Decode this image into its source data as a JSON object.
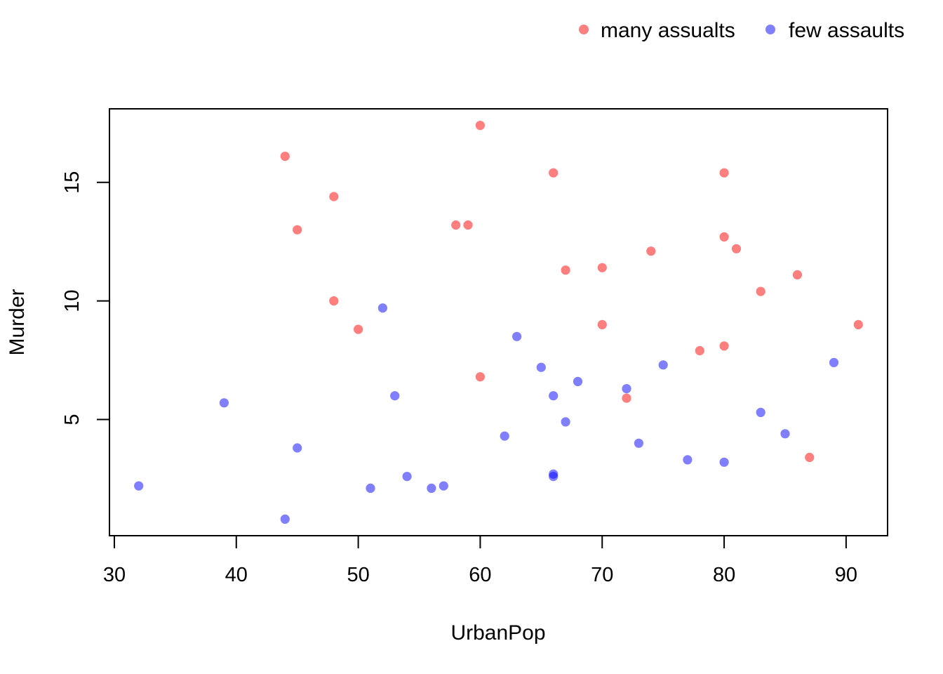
{
  "figure": {
    "background": "#ffffff",
    "text_color": "#000000"
  },
  "chart_data": {
    "type": "scatter",
    "title": "",
    "xlabel": "UrbanPop",
    "ylabel": "Murder",
    "xlim": [
      29.6,
      93.4
    ],
    "ylim": [
      0.1,
      18.1
    ],
    "x_ticks": [
      30,
      40,
      50,
      60,
      70,
      80,
      90
    ],
    "y_ticks": [
      5,
      10,
      15
    ],
    "grid": false,
    "legend_position": "top",
    "point_radius_px": 6.6,
    "series": [
      {
        "name": "many assualts",
        "color": "rgba(255,0,0,0.5)",
        "solid_color": "#ff8080",
        "points": [
          [
            58,
            13.2
          ],
          [
            48,
            10.0
          ],
          [
            80,
            8.1
          ],
          [
            50,
            8.8
          ],
          [
            91,
            9.0
          ],
          [
            78,
            7.9
          ],
          [
            72,
            5.9
          ],
          [
            80,
            15.4
          ],
          [
            60,
            17.4
          ],
          [
            83,
            10.4
          ],
          [
            66,
            15.4
          ],
          [
            67,
            11.3
          ],
          [
            74,
            12.1
          ],
          [
            44,
            16.1
          ],
          [
            70,
            9.0
          ],
          [
            81,
            12.2
          ],
          [
            70,
            11.4
          ],
          [
            86,
            11.1
          ],
          [
            45,
            13.0
          ],
          [
            87,
            3.4
          ],
          [
            48,
            14.4
          ],
          [
            59,
            13.2
          ],
          [
            80,
            12.7
          ],
          [
            60,
            6.8
          ]
        ]
      },
      {
        "name": "few assaults",
        "color": "rgba(0,0,255,0.5)",
        "solid_color": "#8080ff",
        "points": [
          [
            77,
            3.3
          ],
          [
            83,
            5.3
          ],
          [
            54,
            2.6
          ],
          [
            65,
            7.2
          ],
          [
            57,
            2.2
          ],
          [
            66,
            6.0
          ],
          [
            52,
            9.7
          ],
          [
            51,
            2.1
          ],
          [
            85,
            4.4
          ],
          [
            66,
            2.7
          ],
          [
            53,
            6.0
          ],
          [
            62,
            4.3
          ],
          [
            56,
            2.1
          ],
          [
            89,
            7.4
          ],
          [
            44,
            0.8
          ],
          [
            75,
            7.3
          ],
          [
            68,
            6.6
          ],
          [
            67,
            4.9
          ],
          [
            72,
            6.3
          ],
          [
            45,
            3.8
          ],
          [
            80,
            3.2
          ],
          [
            32,
            2.2
          ],
          [
            63,
            8.5
          ],
          [
            73,
            4.0
          ],
          [
            39,
            5.7
          ],
          [
            66,
            2.6
          ]
        ]
      }
    ]
  }
}
